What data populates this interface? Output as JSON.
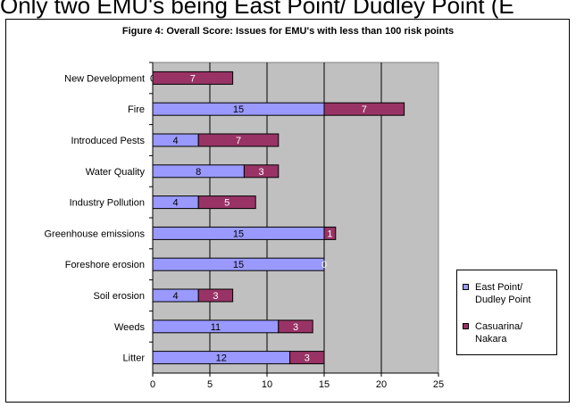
{
  "header_text": "Only two EMU's being East Point/ Dudley Point (E",
  "chart_data": {
    "type": "bar",
    "orientation": "horizontal",
    "stacked": true,
    "title": "Figure 4: Overall Score: Issues for EMU's with less than 100 risk points",
    "categories": [
      "New Development",
      "Fire",
      "Introduced Pests",
      "Water Quality",
      "Industry Pollution",
      "Greenhouse emissions",
      "Foreshore erosion",
      "Soil erosion",
      "Weeds",
      "Litter"
    ],
    "series": [
      {
        "name": "East Point/ Dudley Point",
        "values": [
          0,
          15,
          4,
          8,
          4,
          15,
          15,
          4,
          11,
          12
        ],
        "color": "#9999ff"
      },
      {
        "name": "Casuarina/ Nakara",
        "values": [
          7,
          7,
          7,
          3,
          5,
          1,
          0,
          3,
          3,
          3
        ],
        "color": "#993366"
      }
    ],
    "x_ticks": [
      "0",
      "5",
      "10",
      "15",
      "20",
      "25"
    ],
    "xlim": [
      0,
      25
    ],
    "grid": true,
    "plot_background": "#c0c0c0",
    "legend_position": "right"
  }
}
